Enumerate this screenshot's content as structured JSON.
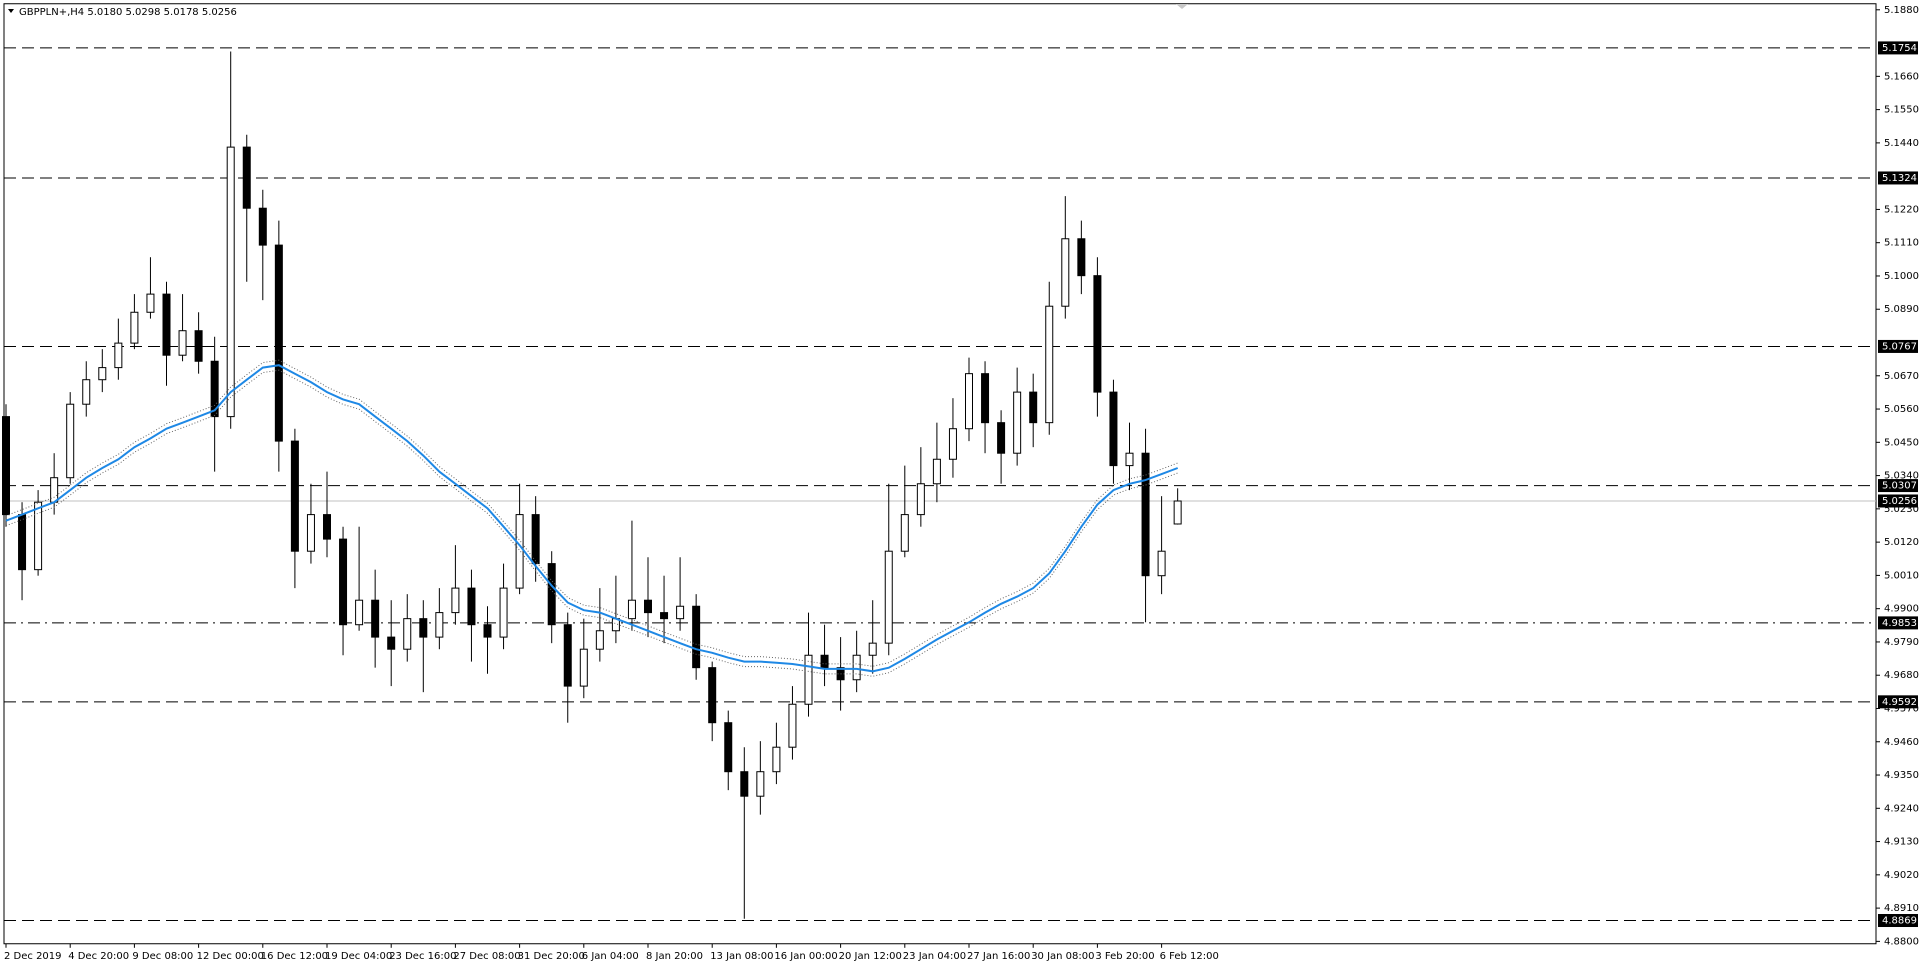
{
  "chart_data": {
    "type": "candlestick",
    "title": "GBPPLN+,H4  5.0180 5.0298 5.0178 5.0256",
    "categories": [
      "2 Dec 2019",
      null,
      null,
      null,
      "4 Dec 20:00",
      null,
      null,
      null,
      "9 Dec 08:00",
      null,
      null,
      null,
      "12 Dec 00:00",
      null,
      null,
      null,
      "16 Dec 12:00",
      null,
      null,
      null,
      "19 Dec 04:00",
      null,
      null,
      null,
      "23 Dec 16:00",
      null,
      null,
      null,
      "27 Dec 08:00",
      null,
      null,
      null,
      "31 Dec 20:00",
      null,
      null,
      null,
      "6 Jan 04:00",
      null,
      null,
      null,
      "8 Jan 20:00",
      null,
      null,
      null,
      "13 Jan 08:00",
      null,
      null,
      null,
      "16 Jan 00:00",
      null,
      null,
      null,
      "20 Jan 12:00",
      null,
      null,
      null,
      "23 Jan 04:00",
      null,
      null,
      null,
      "27 Jan 16:00",
      null,
      null,
      null,
      "30 Jan 08:00",
      null,
      null,
      null,
      "3 Feb 20:00",
      null,
      null,
      null,
      "6 Feb 12:00",
      null
    ],
    "open": [
      5.0535,
      5.0211,
      5.0029,
      5.0252,
      5.0333,
      5.0576,
      5.0657,
      5.0697,
      5.0778,
      5.088,
      5.094,
      5.0738,
      5.0819,
      5.0718,
      5.0535,
      5.1426,
      5.1224,
      5.1102,
      5.0454,
      5.009,
      5.0211,
      5.013,
      4.9847,
      4.9928,
      4.9806,
      4.9766,
      4.9867,
      4.9806,
      4.9887,
      4.9968,
      4.9847,
      4.9806,
      4.9968,
      5.0211,
      5.0049,
      4.9847,
      4.9644,
      4.9766,
      4.9827,
      4.9867,
      4.9928,
      4.9887,
      4.9867,
      4.9908,
      4.9705,
      4.9523,
      4.9361,
      4.928,
      4.9361,
      4.9442,
      4.9584,
      4.9746,
      4.9705,
      4.9665,
      4.9746,
      4.9786,
      5.009,
      5.0211,
      5.0313,
      5.0394,
      5.0495,
      5.0677,
      5.0515,
      5.0414,
      5.0616,
      5.0515,
      5.09,
      5.1123,
      5.1001,
      5.0616,
      5.0373,
      5.0414,
      5.0009,
      5.018
    ],
    "high": [
      5.0576,
      5.0252,
      5.0292,
      5.0414,
      5.0616,
      5.0718,
      5.0758,
      5.0859,
      5.094,
      5.1062,
      5.0981,
      5.094,
      5.088,
      5.0799,
      5.1742,
      5.1467,
      5.1285,
      5.1183,
      5.0495,
      5.0313,
      5.0353,
      5.0171,
      5.0171,
      5.0029,
      4.9928,
      4.9948,
      4.9928,
      4.9968,
      5.011,
      5.0029,
      4.9908,
      5.0049,
      5.0313,
      5.0272,
      5.009,
      4.9887,
      4.9867,
      4.9968,
      5.0009,
      5.0191,
      5.007,
      5.0009,
      5.007,
      4.9948,
      4.9725,
      4.9563,
      4.9442,
      4.9462,
      4.9523,
      4.9644,
      4.9887,
      4.9847,
      4.9806,
      4.9827,
      4.9928,
      5.0313,
      5.0373,
      5.0434,
      5.0515,
      5.0596,
      5.073,
      5.0718,
      5.0556,
      5.0697,
      5.0677,
      5.0981,
      5.1264,
      5.1183,
      5.1062,
      5.0657,
      5.0515,
      5.0495,
      5.0272,
      5.0298
    ],
    "low": [
      5.0171,
      4.9928,
      5.0009,
      5.0211,
      5.0313,
      5.0535,
      5.0616,
      5.0657,
      5.0758,
      5.0859,
      5.0637,
      5.0718,
      5.0677,
      5.0353,
      5.0495,
      5.0981,
      5.092,
      5.0353,
      4.9968,
      5.0049,
      5.007,
      4.9746,
      4.9827,
      4.9705,
      4.9644,
      4.9725,
      4.9624,
      4.9766,
      4.9847,
      4.9725,
      4.9685,
      4.9766,
      4.9948,
      4.9989,
      4.9786,
      4.9523,
      4.9604,
      4.9725,
      4.9786,
      4.9827,
      4.9806,
      4.9786,
      4.9827,
      4.9665,
      4.9462,
      4.93,
      4.8875,
      4.9219,
      4.932,
      4.9401,
      4.9543,
      4.9644,
      4.9563,
      4.9624,
      4.9685,
      4.9746,
      5.007,
      5.0171,
      5.0252,
      5.0333,
      5.0454,
      5.0414,
      5.0313,
      5.0373,
      5.0434,
      5.0475,
      5.0859,
      5.094,
      5.0535,
      5.0313,
      5.0292,
      4.9855,
      4.9948,
      5.0178
    ],
    "close": [
      5.0211,
      5.0029,
      5.0252,
      5.0333,
      5.0576,
      5.0657,
      5.0697,
      5.0778,
      5.088,
      5.094,
      5.0738,
      5.0819,
      5.0718,
      5.0535,
      5.1426,
      5.1224,
      5.1102,
      5.0454,
      5.009,
      5.0211,
      5.013,
      4.9847,
      4.9928,
      4.9806,
      4.9766,
      4.9867,
      4.9806,
      4.9887,
      4.9968,
      4.9847,
      4.9806,
      4.9968,
      5.0211,
      5.0049,
      4.9847,
      4.9644,
      4.9766,
      4.9827,
      4.9867,
      4.9928,
      4.9887,
      4.9867,
      4.9908,
      4.9705,
      4.9523,
      4.9361,
      4.928,
      4.9361,
      4.9442,
      4.9584,
      4.9746,
      4.9705,
      4.9665,
      4.9746,
      4.9786,
      5.009,
      5.0211,
      5.0313,
      5.0394,
      5.0495,
      5.0677,
      5.0515,
      5.0414,
      5.0616,
      5.0515,
      5.09,
      5.1123,
      5.1001,
      5.0616,
      5.0373,
      5.0414,
      5.0009,
      5.009,
      5.0256
    ],
    "ma": {
      "color": "#1e88e5",
      "values": [
        5.0191,
        5.0211,
        5.0232,
        5.0252,
        5.0292,
        5.0333,
        5.0365,
        5.0394,
        5.0434,
        5.0463,
        5.0495,
        5.0515,
        5.0535,
        5.0556,
        5.0616,
        5.0657,
        5.0697,
        5.0705,
        5.0677,
        5.0649,
        5.0616,
        5.0592,
        5.0576,
        5.0535,
        5.0495,
        5.0454,
        5.0406,
        5.0353,
        5.0313,
        5.0272,
        5.0232,
        5.0171,
        5.011,
        5.0041,
        4.9976,
        4.992,
        4.9895,
        4.9887,
        4.9867,
        4.9847,
        4.9827,
        4.9806,
        4.9786,
        4.9766,
        4.9754,
        4.9738,
        4.9725,
        4.9725,
        4.9721,
        4.9717,
        4.9709,
        4.9701,
        4.9701,
        4.9701,
        4.9693,
        4.9705,
        4.9734,
        4.9766,
        4.9798,
        4.9827,
        4.9855,
        4.9887,
        4.9916,
        4.994,
        4.9968,
        5.0017,
        5.009,
        5.0171,
        5.0244,
        5.0292,
        5.0313,
        5.0325,
        5.0345,
        5.0365
      ]
    },
    "levels": [
      5.1754,
      5.1324,
      5.0767,
      5.0307,
      4.9853,
      4.9592,
      4.8869
    ],
    "level_styles": [
      "dashed",
      "dashed",
      "dashed",
      "dashed",
      "dashdot",
      "dashed",
      "dashed"
    ],
    "bid": 5.0256,
    "ylim": [
      4.8792,
      5.19
    ],
    "yticks": [
      {
        "value": 5.188,
        "label": "5.1880"
      },
      {
        "value": 5.166,
        "label": "5.1660"
      },
      {
        "value": 5.155,
        "label": "5.1550"
      },
      {
        "value": 5.144,
        "label": "5.1440"
      },
      {
        "value": 5.122,
        "label": "5.1220"
      },
      {
        "value": 5.111,
        "label": "5.1110"
      },
      {
        "value": 5.1,
        "label": "5.1000"
      },
      {
        "value": 5.089,
        "label": "5.0890"
      },
      {
        "value": 5.067,
        "label": "5.0670"
      },
      {
        "value": 5.056,
        "label": "5.0560"
      },
      {
        "value": 5.045,
        "label": "5.0450"
      },
      {
        "value": 5.034,
        "label": "5.0340"
      },
      {
        "value": 5.023,
        "label": "5.0230"
      },
      {
        "value": 5.012,
        "label": "5.0120"
      },
      {
        "value": 5.001,
        "label": "5.0010"
      },
      {
        "value": 4.99,
        "label": "4.9900"
      },
      {
        "value": 4.979,
        "label": "4.9790"
      },
      {
        "value": 4.968,
        "label": "4.9680"
      },
      {
        "value": 4.957,
        "label": "4.9570"
      },
      {
        "value": 4.946,
        "label": "4.9460"
      },
      {
        "value": 4.935,
        "label": "4.9350"
      },
      {
        "value": 4.924,
        "label": "4.9240"
      },
      {
        "value": 4.913,
        "label": "4.9130"
      },
      {
        "value": 4.902,
        "label": "4.9020"
      },
      {
        "value": 4.891,
        "label": "4.8910"
      },
      {
        "value": 4.88,
        "label": "4.8800"
      }
    ]
  }
}
